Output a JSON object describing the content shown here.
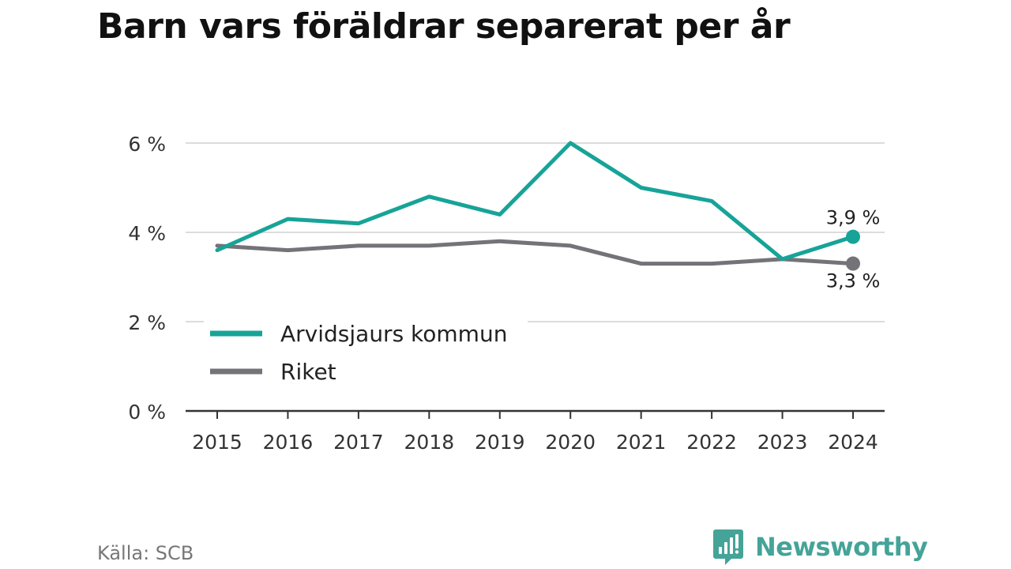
{
  "header": {
    "title": "Barn vars föräldrar separerat per år"
  },
  "footer": {
    "source": "Källa: SCB",
    "brand": "Newsworthy",
    "brand_color": "#45a398"
  },
  "chart_data": {
    "type": "line",
    "title": "Barn vars föräldrar separerat per år",
    "xlabel": "",
    "ylabel": "",
    "x": [
      "2015",
      "2016",
      "2017",
      "2018",
      "2019",
      "2020",
      "2021",
      "2022",
      "2023",
      "2024"
    ],
    "ylim": [
      0,
      6
    ],
    "yticks": [
      0,
      2,
      4,
      6
    ],
    "ytick_labels": [
      "0 %",
      "2 %",
      "4 %",
      "6 %"
    ],
    "grid": true,
    "legend_position": "bottom-left",
    "series": [
      {
        "name": "Arvidsjaurs kommun",
        "color": "#17a398",
        "values": [
          3.6,
          4.3,
          4.2,
          4.8,
          4.4,
          6.0,
          5.0,
          4.7,
          3.4,
          3.9
        ],
        "end_label": "3,9 %"
      },
      {
        "name": "Riket",
        "color": "#747378",
        "values": [
          3.7,
          3.6,
          3.7,
          3.7,
          3.8,
          3.7,
          3.3,
          3.3,
          3.4,
          3.3
        ],
        "end_label": "3,3 %"
      }
    ]
  }
}
